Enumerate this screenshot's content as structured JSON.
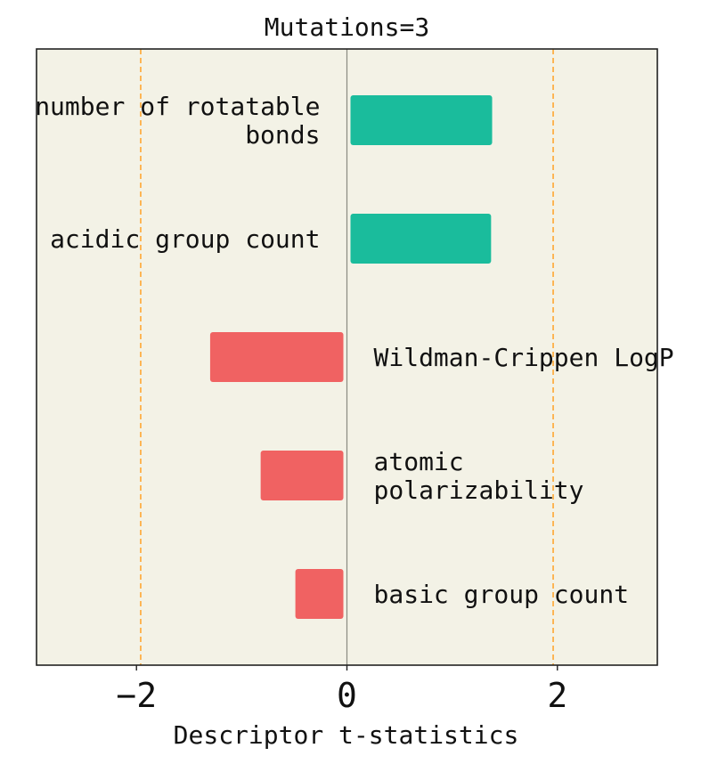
{
  "chart_data": {
    "type": "bar",
    "orientation": "horizontal",
    "title": "Mutations=3",
    "xlabel": "Descriptor t-statistics",
    "ylabel": "",
    "xlim": [
      -2.95,
      2.95
    ],
    "xticks": [
      -2,
      0,
      2
    ],
    "xtick_labels": [
      "−2",
      "0",
      "2"
    ],
    "threshold_lines": [
      -1.96,
      1.96
    ],
    "grid": false,
    "categories": [
      "number of rotatable bonds",
      "acidic group count",
      "Wildman-Crippen LogP",
      "atomic polarizability",
      "basic group count"
    ],
    "label_lines": [
      [
        "number of rotatable",
        "bonds"
      ],
      [
        "acidic group count"
      ],
      [
        "Wildman-Crippen LogP"
      ],
      [
        "atomic",
        "polarizability"
      ],
      [
        "basic group count"
      ]
    ],
    "values": [
      1.38,
      1.37,
      -1.3,
      -0.82,
      -0.49
    ]
  },
  "colors": {
    "positive": "#1abc9c",
    "negative": "#f06262",
    "background": "#f3f2e6",
    "threshold": "#ffa733",
    "zero_line": "#8a8a80",
    "axis": "#222222"
  }
}
